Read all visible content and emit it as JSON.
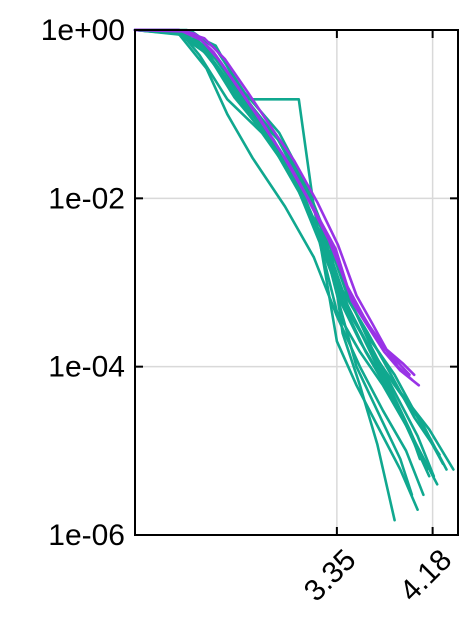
{
  "chart_data": {
    "type": "line",
    "title": "",
    "xlabel": "",
    "ylabel": "",
    "y_scale": "log",
    "xlim": [
      1.6,
      4.4
    ],
    "ylim": [
      1e-06,
      1
    ],
    "grid": true,
    "legend": "none",
    "y_ticks": [
      {
        "value": 1,
        "label": "1e+00"
      },
      {
        "value": 0.01,
        "label": "1e-02"
      },
      {
        "value": 0.0001,
        "label": "1e-04"
      },
      {
        "value": 1e-06,
        "label": "1e-06"
      }
    ],
    "x_ticks": [
      {
        "value": 3.35,
        "label": "3.35"
      },
      {
        "value": 4.18,
        "label": "4.18"
      }
    ],
    "colors": {
      "teal": "#10a88f",
      "purple": "#9933e6",
      "grid": "#d9d9d9",
      "axis": "#000000"
    },
    "series": [
      {
        "color": "teal",
        "x": [
          1.6,
          1.98,
          2.16,
          2.4,
          2.7,
          2.97,
          3.2,
          3.35,
          3.55,
          3.75,
          3.95,
          4.13
        ],
        "y": [
          1,
          1,
          0.5,
          0.15,
          0.06,
          0.018,
          0.003,
          0.00045,
          0.00015,
          6e-05,
          2e-05,
          6e-06
        ]
      },
      {
        "color": "teal",
        "x": [
          1.6,
          1.98,
          2.2,
          2.46,
          2.7,
          2.97,
          3.2,
          3.38,
          3.55,
          3.75,
          3.95,
          4.15
        ],
        "y": [
          1,
          1,
          0.6,
          0.2,
          0.07,
          0.02,
          0.004,
          0.0006,
          0.0002,
          7e-05,
          2e-05,
          5e-06
        ]
      },
      {
        "color": "teal",
        "x": [
          1.6,
          1.98,
          2.24,
          2.52,
          2.8,
          3.05,
          3.25,
          3.42,
          3.6,
          3.8,
          4.0,
          4.22
        ],
        "y": [
          1,
          0.95,
          0.5,
          0.15,
          0.05,
          0.012,
          0.002,
          0.0005,
          0.00015,
          5e-05,
          1.5e-05,
          4e-06
        ]
      },
      {
        "color": "teal",
        "x": [
          1.6,
          2.05,
          2.3,
          2.6,
          2.8,
          3.05,
          3.25,
          3.4,
          3.6,
          3.85,
          4.1,
          4.3
        ],
        "y": [
          1,
          1,
          0.45,
          0.12,
          0.045,
          0.012,
          0.0025,
          0.0006,
          0.0002,
          6e-05,
          2e-05,
          6e-06
        ]
      },
      {
        "color": "teal",
        "x": [
          1.6,
          2.1,
          2.3,
          2.55,
          2.85,
          3.08,
          3.28,
          3.44,
          3.6,
          3.85,
          4.05,
          4.27
        ],
        "y": [
          1,
          0.95,
          0.6,
          0.18,
          0.06,
          0.015,
          0.003,
          0.0007,
          0.00025,
          8e-05,
          2.5e-05,
          7e-06
        ]
      },
      {
        "color": "teal",
        "x": [
          1.6,
          2.1,
          2.35,
          2.62,
          2.9,
          3.12,
          3.3,
          3.45,
          3.65,
          3.9,
          4.15,
          4.36
        ],
        "y": [
          1,
          0.85,
          0.4,
          0.12,
          0.04,
          0.01,
          0.002,
          0.0005,
          0.00015,
          5e-05,
          1.8e-05,
          6e-06
        ]
      },
      {
        "color": "teal",
        "x": [
          1.6,
          2.05,
          2.3,
          2.56,
          2.6,
          3.02,
          3.14,
          3.35,
          3.52,
          3.7,
          3.9,
          4.05
        ],
        "y": [
          1,
          0.95,
          0.65,
          0.15,
          0.15,
          0.15,
          0.01,
          0.0002,
          6e-05,
          2e-05,
          6e-06,
          2e-06
        ]
      },
      {
        "color": "teal",
        "x": [
          1.6,
          2.02,
          2.24,
          2.4,
          2.58,
          2.84,
          3.1,
          3.3,
          3.4,
          3.55,
          3.7,
          3.85
        ],
        "y": [
          1,
          0.9,
          0.6,
          0.3,
          0.12,
          0.05,
          0.012,
          0.0025,
          0.00025,
          6e-05,
          1.2e-05,
          1.5e-06
        ]
      },
      {
        "color": "teal",
        "x": [
          1.6,
          2.02,
          2.22,
          2.5,
          2.8,
          3.05,
          3.25,
          3.38,
          3.52,
          3.7,
          3.9,
          4.0
        ],
        "y": [
          1,
          0.92,
          0.55,
          0.15,
          0.05,
          0.012,
          0.0025,
          0.0005,
          0.0001,
          3e-05,
          8e-06,
          3e-06
        ]
      },
      {
        "color": "teal",
        "x": [
          1.6,
          2.08,
          2.28,
          2.56,
          2.84,
          3.08,
          3.3,
          3.47,
          3.65,
          3.85,
          4.05,
          4.19
        ],
        "y": [
          1,
          0.9,
          0.5,
          0.14,
          0.05,
          0.012,
          0.0025,
          0.0006,
          0.00017,
          5e-05,
          1.5e-05,
          5e-06
        ]
      },
      {
        "color": "teal",
        "x": [
          1.6,
          1.98,
          2.22,
          2.4,
          2.62,
          2.9,
          3.15,
          3.35,
          3.55,
          3.75,
          3.95,
          4.1
        ],
        "y": [
          1,
          0.9,
          0.35,
          0.1,
          0.03,
          0.008,
          0.002,
          0.0004,
          0.0001,
          3e-05,
          1e-05,
          3e-06
        ]
      },
      {
        "color": "teal",
        "x": [
          1.6,
          1.95,
          2.2,
          2.45,
          2.7,
          2.95,
          3.2,
          3.38,
          3.58,
          3.78,
          3.98,
          4.13
        ],
        "y": [
          1,
          0.95,
          0.55,
          0.2,
          0.07,
          0.02,
          0.004,
          0.0008,
          0.00022,
          6e-05,
          1.8e-05,
          6e-06
        ]
      },
      {
        "color": "teal",
        "x": [
          1.6,
          2.05,
          2.26,
          2.52,
          2.78,
          3.02,
          3.22,
          3.4,
          3.6,
          3.8,
          3.98,
          4.07
        ],
        "y": [
          1,
          0.88,
          0.45,
          0.13,
          0.045,
          0.012,
          0.003,
          0.0007,
          0.0002,
          6e-05,
          1.8e-05,
          8e-06
        ]
      },
      {
        "color": "teal",
        "x": [
          1.6,
          2.0,
          2.2,
          2.46,
          2.74,
          3.0,
          3.22,
          3.4,
          3.62,
          3.82,
          4.02,
          4.24
        ],
        "y": [
          1,
          0.95,
          0.6,
          0.16,
          0.055,
          0.015,
          0.0035,
          0.0008,
          0.00025,
          8e-05,
          2.5e-05,
          9e-06
        ]
      },
      {
        "color": "purple",
        "x": [
          1.6,
          1.98,
          2.14,
          2.3,
          2.5,
          2.7,
          2.9,
          3.1,
          3.3,
          3.45,
          3.6,
          3.75,
          3.88,
          4.0
        ],
        "y": [
          1,
          1,
          0.85,
          0.5,
          0.2,
          0.08,
          0.03,
          0.01,
          0.003,
          0.0008,
          0.00035,
          0.00018,
          0.0001,
          7e-05
        ]
      },
      {
        "color": "purple",
        "x": [
          1.6,
          2.0,
          2.18,
          2.34,
          2.54,
          2.74,
          2.94,
          3.14,
          3.34,
          3.48,
          3.62,
          3.76,
          3.9,
          4.06
        ],
        "y": [
          1,
          0.98,
          0.75,
          0.42,
          0.17,
          0.065,
          0.025,
          0.008,
          0.0025,
          0.0006,
          0.0003,
          0.00015,
          9e-05,
          6e-05
        ]
      },
      {
        "color": "purple",
        "x": [
          1.6,
          2.02,
          2.2,
          2.38,
          2.58,
          2.78,
          2.98,
          3.18,
          3.36,
          3.52,
          3.66,
          3.78,
          3.92,
          4.02
        ],
        "y": [
          1,
          0.96,
          0.8,
          0.45,
          0.18,
          0.07,
          0.028,
          0.009,
          0.0028,
          0.0007,
          0.00032,
          0.00016,
          0.00011,
          8e-05
        ]
      },
      {
        "color": "purple",
        "x": [
          1.6,
          1.98,
          2.12,
          2.28,
          2.48,
          2.68,
          2.88,
          3.08,
          3.28,
          3.44,
          3.58,
          3.72,
          3.86,
          3.98
        ],
        "y": [
          1,
          1,
          0.9,
          0.55,
          0.22,
          0.09,
          0.033,
          0.011,
          0.0032,
          0.0009,
          0.0004,
          0.00019,
          0.00012,
          8e-05
        ]
      }
    ]
  }
}
